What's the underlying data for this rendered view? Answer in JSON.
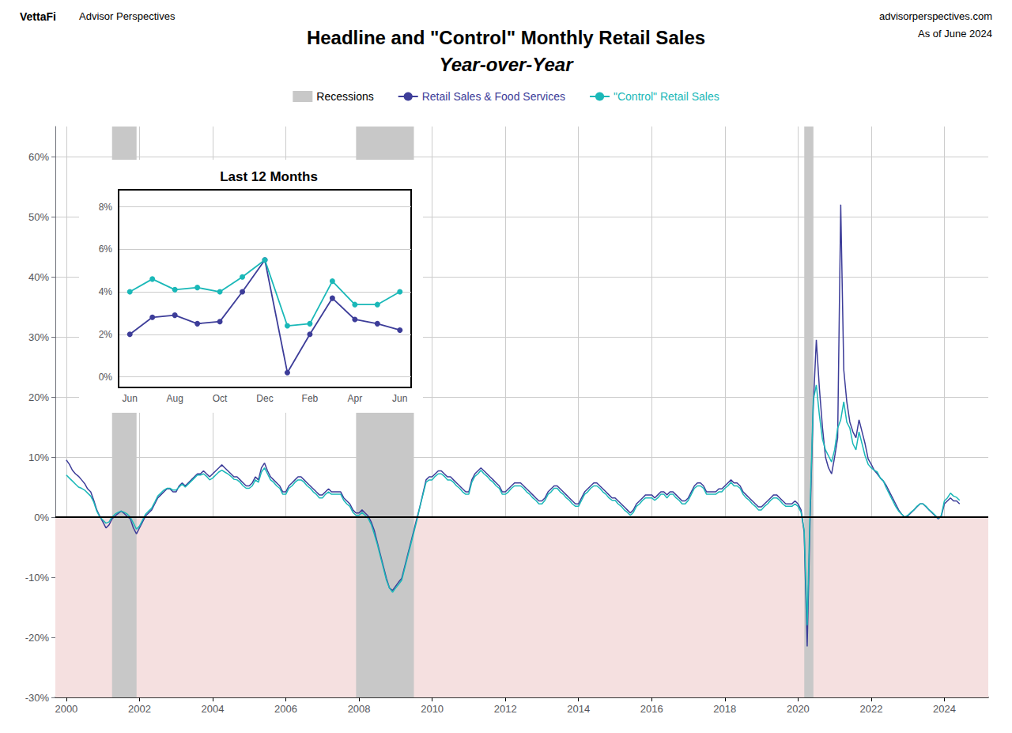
{
  "chart_data": [
    {
      "type": "line",
      "title": "Headline and \"Control\" Monthly Retail Sales",
      "subtitle": "Year-over-Year",
      "annotations": [
        "VettaFi",
        "Advisor Perspectives",
        "advisorperspectives.com",
        "As of June 2024"
      ],
      "legend": "top",
      "grid": true,
      "xlim": [
        1999.7,
        2025.2
      ],
      "xticks": [
        2000,
        2002,
        2004,
        2006,
        2008,
        2010,
        2012,
        2014,
        2016,
        2018,
        2020,
        2022,
        2024
      ],
      "ylim": [
        -0.3,
        0.65
      ],
      "yticks": [
        {
          "value": -0.3,
          "label": "-30%"
        },
        {
          "value": -0.2,
          "label": "-20%"
        },
        {
          "value": -0.1,
          "label": "-10%"
        },
        {
          "value": 0.0,
          "label": "0%"
        },
        {
          "value": 0.1,
          "label": "10%"
        },
        {
          "value": 0.2,
          "label": "20%"
        },
        {
          "value": 0.3,
          "label": "30%"
        },
        {
          "value": 0.4,
          "label": "40%"
        },
        {
          "value": 0.5,
          "label": "50%"
        },
        {
          "value": 0.6,
          "label": "60%"
        }
      ],
      "shade_below": {
        "y": 0,
        "color": "#f5e0e0"
      },
      "bands": {
        "name": "Recessions",
        "color": "#c8c8c8",
        "ranges": [
          [
            2001.25,
            2001.92
          ],
          [
            2007.92,
            2009.5
          ],
          [
            2020.17,
            2020.42
          ]
        ]
      },
      "x": [
        2000.0,
        2000.083,
        2000.167,
        2000.25,
        2000.333,
        2000.417,
        2000.5,
        2000.583,
        2000.667,
        2000.75,
        2000.833,
        2000.917,
        2001.0,
        2001.083,
        2001.167,
        2001.25,
        2001.333,
        2001.417,
        2001.5,
        2001.583,
        2001.667,
        2001.75,
        2001.833,
        2001.917,
        2002.0,
        2002.083,
        2002.167,
        2002.25,
        2002.333,
        2002.417,
        2002.5,
        2002.583,
        2002.667,
        2002.75,
        2002.833,
        2002.917,
        2003.0,
        2003.083,
        2003.167,
        2003.25,
        2003.333,
        2003.417,
        2003.5,
        2003.583,
        2003.667,
        2003.75,
        2003.833,
        2003.917,
        2004.0,
        2004.083,
        2004.167,
        2004.25,
        2004.333,
        2004.417,
        2004.5,
        2004.583,
        2004.667,
        2004.75,
        2004.833,
        2004.917,
        2005.0,
        2005.083,
        2005.167,
        2005.25,
        2005.333,
        2005.417,
        2005.5,
        2005.583,
        2005.667,
        2005.75,
        2005.833,
        2005.917,
        2006.0,
        2006.083,
        2006.167,
        2006.25,
        2006.333,
        2006.417,
        2006.5,
        2006.583,
        2006.667,
        2006.75,
        2006.833,
        2006.917,
        2007.0,
        2007.083,
        2007.167,
        2007.25,
        2007.333,
        2007.417,
        2007.5,
        2007.583,
        2007.667,
        2007.75,
        2007.833,
        2007.917,
        2008.0,
        2008.083,
        2008.167,
        2008.25,
        2008.333,
        2008.417,
        2008.5,
        2008.583,
        2008.667,
        2008.75,
        2008.833,
        2008.917,
        2009.0,
        2009.083,
        2009.167,
        2009.25,
        2009.333,
        2009.417,
        2009.5,
        2009.583,
        2009.667,
        2009.75,
        2009.833,
        2009.917,
        2010.0,
        2010.083,
        2010.167,
        2010.25,
        2010.333,
        2010.417,
        2010.5,
        2010.583,
        2010.667,
        2010.75,
        2010.833,
        2010.917,
        2011.0,
        2011.083,
        2011.167,
        2011.25,
        2011.333,
        2011.417,
        2011.5,
        2011.583,
        2011.667,
        2011.75,
        2011.833,
        2011.917,
        2012.0,
        2012.083,
        2012.167,
        2012.25,
        2012.333,
        2012.417,
        2012.5,
        2012.583,
        2012.667,
        2012.75,
        2012.833,
        2012.917,
        2013.0,
        2013.083,
        2013.167,
        2013.25,
        2013.333,
        2013.417,
        2013.5,
        2013.583,
        2013.667,
        2013.75,
        2013.833,
        2013.917,
        2014.0,
        2014.083,
        2014.167,
        2014.25,
        2014.333,
        2014.417,
        2014.5,
        2014.583,
        2014.667,
        2014.75,
        2014.833,
        2014.917,
        2015.0,
        2015.083,
        2015.167,
        2015.25,
        2015.333,
        2015.417,
        2015.5,
        2015.583,
        2015.667,
        2015.75,
        2015.833,
        2015.917,
        2016.0,
        2016.083,
        2016.167,
        2016.25,
        2016.333,
        2016.417,
        2016.5,
        2016.583,
        2016.667,
        2016.75,
        2016.833,
        2016.917,
        2017.0,
        2017.083,
        2017.167,
        2017.25,
        2017.333,
        2017.417,
        2017.5,
        2017.583,
        2017.667,
        2017.75,
        2017.833,
        2017.917,
        2018.0,
        2018.083,
        2018.167,
        2018.25,
        2018.333,
        2018.417,
        2018.5,
        2018.583,
        2018.667,
        2018.75,
        2018.833,
        2018.917,
        2019.0,
        2019.083,
        2019.167,
        2019.25,
        2019.333,
        2019.417,
        2019.5,
        2019.583,
        2019.667,
        2019.75,
        2019.833,
        2019.917,
        2020.0,
        2020.083,
        2020.167,
        2020.25,
        2020.333,
        2020.417,
        2020.5,
        2020.583,
        2020.667,
        2020.75,
        2020.833,
        2020.917,
        2021.0,
        2021.083,
        2021.167,
        2021.25,
        2021.333,
        2021.417,
        2021.5,
        2021.583,
        2021.667,
        2021.75,
        2021.833,
        2021.917,
        2022.0,
        2022.083,
        2022.167,
        2022.25,
        2022.333,
        2022.417,
        2022.5,
        2022.583,
        2022.667,
        2022.75,
        2022.833,
        2022.917,
        2023.0,
        2023.083,
        2023.167,
        2023.25,
        2023.333,
        2023.417,
        2023.5,
        2023.583,
        2023.667,
        2023.75,
        2023.833,
        2023.917,
        2024.0,
        2024.083,
        2024.167,
        2024.25,
        2024.333,
        2024.417
      ],
      "series": [
        {
          "name": "Retail Sales & Food Services",
          "color": "#3d3d99",
          "values": [
            0.095,
            0.088,
            0.078,
            0.072,
            0.068,
            0.062,
            0.056,
            0.047,
            0.042,
            0.028,
            0.012,
            0.001,
            -0.008,
            -0.018,
            -0.013,
            -0.003,
            0.002,
            0.006,
            0.01,
            0.006,
            0.001,
            -0.003,
            -0.018,
            -0.028,
            -0.018,
            -0.008,
            0.002,
            0.007,
            0.012,
            0.022,
            0.032,
            0.037,
            0.042,
            0.047,
            0.047,
            0.042,
            0.042,
            0.052,
            0.057,
            0.052,
            0.057,
            0.062,
            0.067,
            0.072,
            0.072,
            0.077,
            0.072,
            0.067,
            0.072,
            0.077,
            0.082,
            0.087,
            0.082,
            0.077,
            0.072,
            0.067,
            0.067,
            0.062,
            0.057,
            0.052,
            0.052,
            0.057,
            0.067,
            0.062,
            0.082,
            0.09,
            0.077,
            0.067,
            0.062,
            0.057,
            0.052,
            0.042,
            0.042,
            0.052,
            0.057,
            0.062,
            0.067,
            0.067,
            0.062,
            0.057,
            0.052,
            0.047,
            0.042,
            0.037,
            0.037,
            0.042,
            0.047,
            0.042,
            0.042,
            0.042,
            0.042,
            0.032,
            0.027,
            0.022,
            0.012,
            0.007,
            0.007,
            0.012,
            0.007,
            0.002,
            -0.008,
            -0.022,
            -0.042,
            -0.062,
            -0.082,
            -0.102,
            -0.118,
            -0.122,
            -0.115,
            -0.108,
            -0.102,
            -0.082,
            -0.062,
            -0.042,
            -0.022,
            -0.002,
            0.018,
            0.04,
            0.062,
            0.067,
            0.067,
            0.072,
            0.077,
            0.077,
            0.072,
            0.067,
            0.067,
            0.062,
            0.057,
            0.052,
            0.047,
            0.042,
            0.042,
            0.062,
            0.072,
            0.077,
            0.082,
            0.077,
            0.072,
            0.067,
            0.062,
            0.057,
            0.052,
            0.042,
            0.042,
            0.047,
            0.052,
            0.057,
            0.057,
            0.057,
            0.052,
            0.047,
            0.042,
            0.037,
            0.032,
            0.027,
            0.027,
            0.032,
            0.042,
            0.047,
            0.052,
            0.052,
            0.047,
            0.042,
            0.037,
            0.032,
            0.027,
            0.022,
            0.022,
            0.032,
            0.042,
            0.047,
            0.052,
            0.057,
            0.057,
            0.052,
            0.047,
            0.042,
            0.037,
            0.032,
            0.032,
            0.027,
            0.022,
            0.017,
            0.012,
            0.007,
            0.012,
            0.022,
            0.027,
            0.032,
            0.037,
            0.037,
            0.037,
            0.032,
            0.037,
            0.042,
            0.042,
            0.037,
            0.042,
            0.042,
            0.037,
            0.032,
            0.027,
            0.027,
            0.032,
            0.042,
            0.052,
            0.057,
            0.057,
            0.052,
            0.042,
            0.042,
            0.042,
            0.042,
            0.047,
            0.047,
            0.052,
            0.057,
            0.062,
            0.057,
            0.057,
            0.052,
            0.042,
            0.037,
            0.032,
            0.027,
            0.022,
            0.017,
            0.017,
            0.022,
            0.027,
            0.032,
            0.037,
            0.037,
            0.032,
            0.027,
            0.022,
            0.022,
            0.022,
            0.027,
            0.022,
            0.012,
            -0.025,
            -0.215,
            0.005,
            0.185,
            0.295,
            0.215,
            0.15,
            0.1,
            0.082,
            0.072,
            0.1,
            0.132,
            0.52,
            0.245,
            0.192,
            0.158,
            0.142,
            0.132,
            0.162,
            0.142,
            0.122,
            0.097,
            0.088,
            0.078,
            0.072,
            0.065,
            0.06,
            0.052,
            0.042,
            0.032,
            0.022,
            0.012,
            0.005,
            0.0,
            0.002,
            0.007,
            0.012,
            0.017,
            0.022,
            0.022,
            0.017,
            0.012,
            0.007,
            0.002,
            -0.003,
            0.002,
            0.022,
            0.027,
            0.032,
            0.027,
            0.027,
            0.022
          ]
        },
        {
          "name": "\"Control\" Retail Sales",
          "color": "#1ab8b8",
          "values": [
            0.07,
            0.065,
            0.06,
            0.055,
            0.05,
            0.048,
            0.045,
            0.04,
            0.035,
            0.025,
            0.01,
            0.0,
            -0.005,
            -0.01,
            -0.008,
            0.0,
            0.005,
            0.008,
            0.01,
            0.008,
            0.005,
            0.0,
            -0.01,
            -0.02,
            -0.015,
            -0.005,
            0.005,
            0.01,
            0.015,
            0.025,
            0.035,
            0.04,
            0.045,
            0.048,
            0.048,
            0.045,
            0.045,
            0.05,
            0.055,
            0.05,
            0.055,
            0.06,
            0.065,
            0.07,
            0.07,
            0.072,
            0.068,
            0.062,
            0.065,
            0.07,
            0.075,
            0.078,
            0.075,
            0.072,
            0.068,
            0.063,
            0.062,
            0.058,
            0.052,
            0.048,
            0.048,
            0.052,
            0.062,
            0.058,
            0.075,
            0.082,
            0.072,
            0.062,
            0.058,
            0.052,
            0.048,
            0.038,
            0.038,
            0.048,
            0.052,
            0.058,
            0.062,
            0.062,
            0.058,
            0.052,
            0.048,
            0.042,
            0.038,
            0.032,
            0.032,
            0.038,
            0.042,
            0.038,
            0.038,
            0.038,
            0.038,
            0.028,
            0.022,
            0.018,
            0.008,
            0.003,
            0.003,
            0.008,
            0.003,
            -0.002,
            -0.012,
            -0.028,
            -0.045,
            -0.065,
            -0.085,
            -0.105,
            -0.118,
            -0.125,
            -0.118,
            -0.112,
            -0.105,
            -0.085,
            -0.065,
            -0.045,
            -0.025,
            -0.005,
            0.018,
            0.038,
            0.058,
            0.062,
            0.062,
            0.068,
            0.072,
            0.072,
            0.068,
            0.062,
            0.062,
            0.058,
            0.052,
            0.048,
            0.042,
            0.038,
            0.038,
            0.058,
            0.068,
            0.072,
            0.078,
            0.072,
            0.068,
            0.062,
            0.058,
            0.052,
            0.048,
            0.038,
            0.038,
            0.042,
            0.048,
            0.052,
            0.052,
            0.052,
            0.048,
            0.042,
            0.038,
            0.032,
            0.028,
            0.022,
            0.022,
            0.028,
            0.038,
            0.042,
            0.048,
            0.048,
            0.042,
            0.038,
            0.032,
            0.028,
            0.022,
            0.018,
            0.018,
            0.028,
            0.038,
            0.042,
            0.048,
            0.052,
            0.052,
            0.048,
            0.042,
            0.038,
            0.032,
            0.028,
            0.028,
            0.022,
            0.018,
            0.012,
            0.008,
            0.003,
            0.008,
            0.018,
            0.022,
            0.028,
            0.032,
            0.032,
            0.032,
            0.028,
            0.032,
            0.038,
            0.038,
            0.032,
            0.038,
            0.038,
            0.032,
            0.028,
            0.022,
            0.022,
            0.028,
            0.038,
            0.048,
            0.052,
            0.052,
            0.048,
            0.038,
            0.038,
            0.038,
            0.038,
            0.042,
            0.042,
            0.048,
            0.052,
            0.058,
            0.052,
            0.052,
            0.048,
            0.038,
            0.032,
            0.028,
            0.022,
            0.018,
            0.012,
            0.012,
            0.018,
            0.022,
            0.028,
            0.032,
            0.032,
            0.028,
            0.022,
            0.018,
            0.018,
            0.018,
            0.022,
            0.018,
            0.008,
            -0.022,
            -0.18,
            0.02,
            0.195,
            0.22,
            0.17,
            0.13,
            0.112,
            0.102,
            0.092,
            0.112,
            0.148,
            0.162,
            0.192,
            0.158,
            0.148,
            0.122,
            0.112,
            0.142,
            0.122,
            0.102,
            0.088,
            0.082,
            0.078,
            0.075,
            0.065,
            0.06,
            0.048,
            0.038,
            0.028,
            0.018,
            0.01,
            0.005,
            0.0,
            0.003,
            0.008,
            0.012,
            0.018,
            0.022,
            0.022,
            0.018,
            0.012,
            0.008,
            0.003,
            -0.002,
            0.003,
            0.027,
            0.032,
            0.04,
            0.035,
            0.033,
            0.028
          ]
        }
      ]
    },
    {
      "type": "line",
      "title": "Last 12 Months",
      "grid": "y",
      "marker": "circle",
      "categories": [
        "Jun",
        null,
        "Aug",
        null,
        "Oct",
        null,
        "Dec",
        null,
        "Feb",
        null,
        "Apr",
        null,
        "Jun"
      ],
      "ylim": [
        -0.005,
        0.088
      ],
      "yticks": [
        {
          "value": 0.0,
          "label": "0%"
        },
        {
          "value": 0.02,
          "label": "2%"
        },
        {
          "value": 0.04,
          "label": "4%"
        },
        {
          "value": 0.06,
          "label": "6%"
        },
        {
          "value": 0.08,
          "label": "8%"
        }
      ],
      "series": [
        {
          "color": "#3d3d99",
          "values": [
            0.02,
            0.028,
            0.029,
            0.025,
            0.026,
            0.04,
            0.055,
            0.002,
            0.02,
            0.037,
            0.027,
            0.025,
            0.022
          ]
        },
        {
          "color": "#1ab8b8",
          "values": [
            0.04,
            0.046,
            0.041,
            0.042,
            0.04,
            0.047,
            0.055,
            0.024,
            0.025,
            0.045,
            0.034,
            0.034,
            0.04
          ]
        }
      ]
    }
  ]
}
